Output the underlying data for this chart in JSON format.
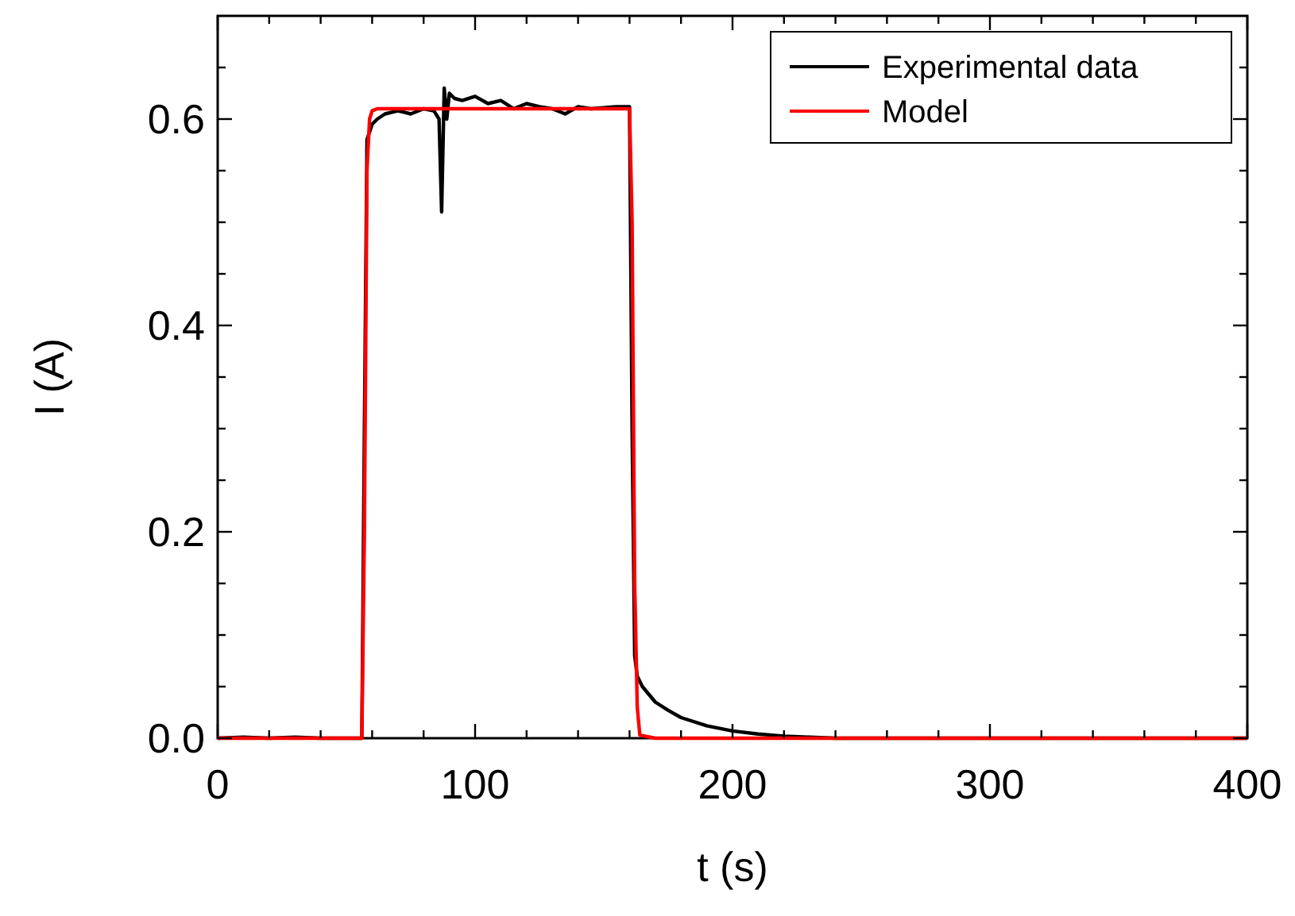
{
  "chart_data": {
    "type": "line",
    "xlabel": "t (s)",
    "ylabel": "I (A)",
    "xlim": [
      0,
      400
    ],
    "ylim": [
      0,
      0.7
    ],
    "xticks": [
      0,
      {
        "value": 20,
        "label": null
      },
      {
        "value": 40,
        "label": null
      },
      {
        "value": 60,
        "label": null
      },
      {
        "value": 80,
        "label": null
      },
      100,
      {
        "value": 120,
        "label": null
      },
      {
        "value": 140,
        "label": null
      },
      {
        "value": 160,
        "label": null
      },
      {
        "value": 180,
        "label": null
      },
      200,
      {
        "value": 220,
        "label": null
      },
      {
        "value": 240,
        "label": null
      },
      {
        "value": 260,
        "label": null
      },
      {
        "value": 280,
        "label": null
      },
      300,
      {
        "value": 320,
        "label": null
      },
      {
        "value": 340,
        "label": null
      },
      {
        "value": 360,
        "label": null
      },
      {
        "value": 380,
        "label": null
      },
      400
    ],
    "yticks": [
      {
        "value": 0,
        "label": "0.0"
      },
      {
        "value": 0.05,
        "label": null
      },
      {
        "value": 0.1,
        "label": null
      },
      {
        "value": 0.15,
        "label": null
      },
      0.2,
      {
        "value": 0.25,
        "label": null
      },
      {
        "value": 0.3,
        "label": null
      },
      {
        "value": 0.35,
        "label": null
      },
      0.4,
      {
        "value": 0.45,
        "label": null
      },
      {
        "value": 0.5,
        "label": null
      },
      {
        "value": 0.55,
        "label": null
      },
      0.6,
      {
        "value": 0.65,
        "label": null
      }
    ],
    "grid": false,
    "legend": "top right",
    "marker": "none",
    "line_style": "solid",
    "series": [
      {
        "name": "Experimental data",
        "color": "#000000",
        "x": [
          0,
          10,
          20,
          30,
          40,
          50,
          56,
          57,
          58,
          60,
          62,
          65,
          70,
          75,
          80,
          84,
          86,
          87,
          88,
          89,
          90,
          92,
          95,
          100,
          105,
          110,
          115,
          120,
          125,
          130,
          135,
          140,
          145,
          150,
          155,
          160,
          161,
          162,
          163,
          165,
          170,
          175,
          180,
          190,
          200,
          210,
          220,
          230,
          240,
          260,
          300,
          350,
          400
        ],
        "values": [
          0,
          0.001,
          0,
          0.001,
          0,
          0,
          0,
          0.3,
          0.58,
          0.595,
          0.6,
          0.605,
          0.608,
          0.605,
          0.61,
          0.608,
          0.6,
          0.51,
          0.63,
          0.6,
          0.625,
          0.62,
          0.618,
          0.622,
          0.615,
          0.618,
          0.61,
          0.615,
          0.612,
          0.61,
          0.605,
          0.612,
          0.61,
          0.611,
          0.612,
          0.612,
          0.3,
          0.08,
          0.06,
          0.05,
          0.035,
          0.027,
          0.02,
          0.012,
          0.007,
          0.004,
          0.002,
          0.001,
          0,
          0,
          0,
          0,
          0
        ]
      },
      {
        "name": "Model",
        "color": "#ff0000",
        "x": [
          0,
          56,
          57,
          58,
          59,
          60,
          62,
          100,
          160,
          161,
          162,
          163,
          164,
          170,
          200,
          300,
          400
        ],
        "values": [
          0,
          0,
          0.2,
          0.55,
          0.6,
          0.608,
          0.61,
          0.61,
          0.61,
          0.5,
          0.15,
          0.03,
          0.003,
          0,
          0,
          0,
          0
        ]
      }
    ]
  }
}
